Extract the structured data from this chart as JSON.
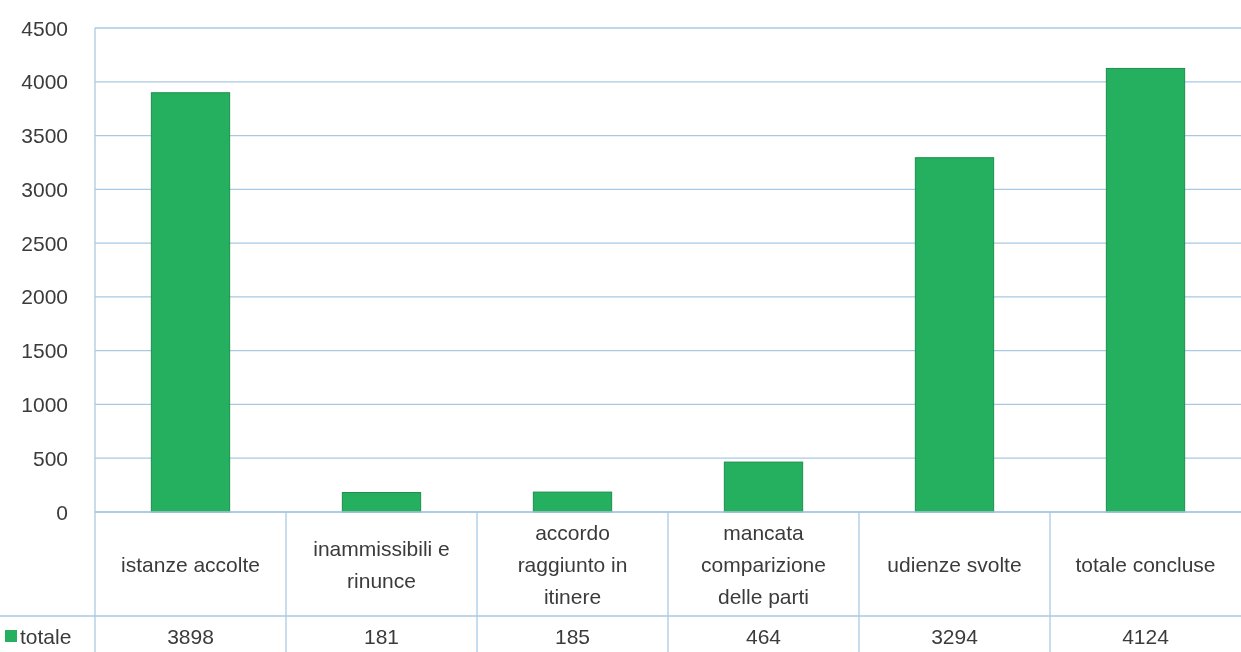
{
  "chart_data": {
    "type": "bar",
    "categories": [
      "istanze accolte",
      "inammissibili e rinunce",
      "accordo raggiunto in itinere",
      "mancata comparizione delle parti",
      "udienze svolte",
      "totale concluse"
    ],
    "series": [
      {
        "name": "totale",
        "color": "#24b05f",
        "values": [
          3898,
          181,
          185,
          464,
          3294,
          4124
        ]
      }
    ],
    "ylim": [
      0,
      4500
    ],
    "yticks": [
      0,
      500,
      1000,
      1500,
      2000,
      2500,
      3000,
      3500,
      4000,
      4500
    ],
    "grid": "y",
    "legend": "bottom left",
    "data_labels": true
  }
}
